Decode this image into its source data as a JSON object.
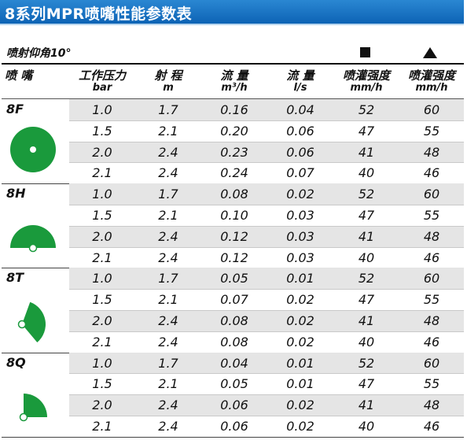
{
  "title": "8系列MPR喷嘴性能参数表",
  "angle_label": "喷射仰角10°",
  "symbols": {
    "square": "square-symbol",
    "triangle": "triangle-symbol"
  },
  "headers": [
    {
      "label": "喷 嘴",
      "unit": ""
    },
    {
      "label": "工作压力",
      "unit": "bar"
    },
    {
      "label": "射 程",
      "unit": "m"
    },
    {
      "label": "流 量",
      "unit": "m³/h"
    },
    {
      "label": "流 量",
      "unit": "l/s"
    },
    {
      "label": "喷灌强度",
      "unit": "mm/h"
    },
    {
      "label": "喷灌强度",
      "unit": "mm/h"
    }
  ],
  "nozzles": [
    {
      "name": "8F",
      "shape": "full-circle",
      "rows": [
        [
          "1.0",
          "1.7",
          "0.16",
          "0.04",
          "52",
          "60"
        ],
        [
          "1.5",
          "2.1",
          "0.20",
          "0.06",
          "47",
          "55"
        ],
        [
          "2.0",
          "2.4",
          "0.23",
          "0.06",
          "41",
          "48"
        ],
        [
          "2.1",
          "2.4",
          "0.24",
          "0.07",
          "40",
          "46"
        ]
      ]
    },
    {
      "name": "8H",
      "shape": "half-circle",
      "rows": [
        [
          "1.0",
          "1.7",
          "0.08",
          "0.02",
          "52",
          "60"
        ],
        [
          "1.5",
          "2.1",
          "0.10",
          "0.03",
          "47",
          "55"
        ],
        [
          "2.0",
          "2.4",
          "0.12",
          "0.03",
          "41",
          "48"
        ],
        [
          "2.1",
          "2.4",
          "0.12",
          "0.03",
          "40",
          "46"
        ]
      ]
    },
    {
      "name": "8T",
      "shape": "third-circle",
      "rows": [
        [
          "1.0",
          "1.7",
          "0.05",
          "0.01",
          "52",
          "60"
        ],
        [
          "1.5",
          "2.1",
          "0.07",
          "0.02",
          "47",
          "55"
        ],
        [
          "2.0",
          "2.4",
          "0.08",
          "0.02",
          "41",
          "48"
        ],
        [
          "2.1",
          "2.4",
          "0.08",
          "0.02",
          "40",
          "46"
        ]
      ]
    },
    {
      "name": "8Q",
      "shape": "quarter-circle",
      "rows": [
        [
          "1.0",
          "1.7",
          "0.04",
          "0.01",
          "52",
          "60"
        ],
        [
          "1.5",
          "2.1",
          "0.05",
          "0.01",
          "47",
          "55"
        ],
        [
          "2.0",
          "2.4",
          "0.06",
          "0.02",
          "41",
          "48"
        ],
        [
          "2.1",
          "2.4",
          "0.06",
          "0.02",
          "40",
          "46"
        ]
      ]
    }
  ],
  "colors": {
    "accent": "#1a9a3c",
    "title_bg": "#0d63b5",
    "row_shade": "#e5e5e5"
  }
}
